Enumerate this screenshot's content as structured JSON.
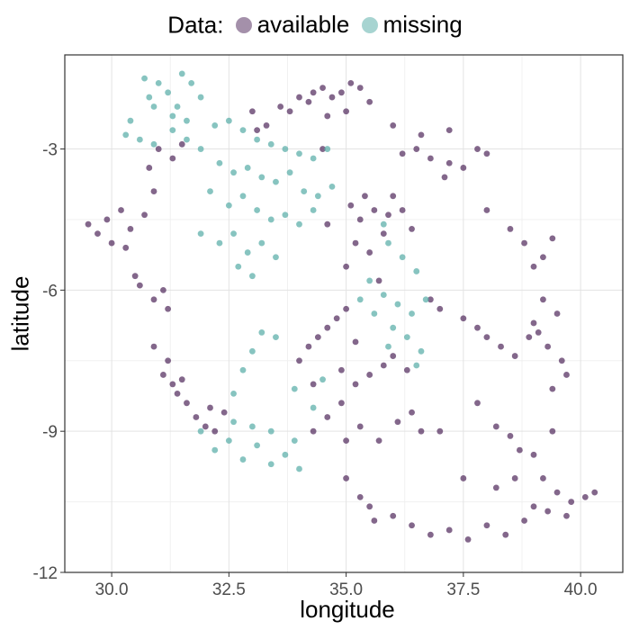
{
  "chart_data": {
    "type": "scatter",
    "title": "",
    "xlabel": "longitude",
    "ylabel": "latitude",
    "xlim": [
      29.0,
      40.9
    ],
    "ylim": [
      -12.0,
      -1.0
    ],
    "xticks": [
      30.0,
      32.5,
      35.0,
      37.5,
      40.0
    ],
    "xtick_labels": [
      "30.0",
      "32.5",
      "35.0",
      "37.5",
      "40.0"
    ],
    "yticks": [
      -3,
      -6,
      -9,
      -12
    ],
    "ytick_labels": [
      "-3",
      "-6",
      "-9",
      "-12"
    ],
    "grid": true,
    "legend": {
      "title": "Data:",
      "placement": "top"
    },
    "series": [
      {
        "name": "available",
        "color": "#5a3464",
        "points": [
          [
            29.5,
            -4.6
          ],
          [
            29.7,
            -4.8
          ],
          [
            29.9,
            -4.5
          ],
          [
            30.0,
            -5.0
          ],
          [
            30.2,
            -4.3
          ],
          [
            30.3,
            -5.1
          ],
          [
            30.4,
            -4.7
          ],
          [
            30.5,
            -5.7
          ],
          [
            30.6,
            -5.9
          ],
          [
            30.9,
            -6.2
          ],
          [
            31.2,
            -6.4
          ],
          [
            31.1,
            -6.0
          ],
          [
            30.8,
            -3.4
          ],
          [
            30.9,
            -3.9
          ],
          [
            30.7,
            -4.4
          ],
          [
            31.0,
            -3.0
          ],
          [
            31.3,
            -3.2
          ],
          [
            31.5,
            -2.9
          ],
          [
            31.2,
            -7.5
          ],
          [
            31.1,
            -7.8
          ],
          [
            31.3,
            -8.0
          ],
          [
            31.4,
            -8.2
          ],
          [
            31.6,
            -8.4
          ],
          [
            31.8,
            -8.7
          ],
          [
            32.0,
            -8.9
          ],
          [
            32.2,
            -9.0
          ],
          [
            32.4,
            -8.6
          ],
          [
            31.5,
            -7.9
          ],
          [
            32.1,
            -8.5
          ],
          [
            30.9,
            -7.2
          ],
          [
            33.0,
            -2.2
          ],
          [
            33.1,
            -2.6
          ],
          [
            33.3,
            -2.5
          ],
          [
            33.6,
            -2.1
          ],
          [
            33.8,
            -2.2
          ],
          [
            34.0,
            -1.9
          ],
          [
            34.3,
            -1.8
          ],
          [
            34.5,
            -1.7
          ],
          [
            34.7,
            -1.9
          ],
          [
            34.9,
            -1.8
          ],
          [
            35.1,
            -1.6
          ],
          [
            35.3,
            -1.7
          ],
          [
            35.5,
            -2.0
          ],
          [
            35.0,
            -2.2
          ],
          [
            34.6,
            -2.3
          ],
          [
            34.2,
            -2.0
          ],
          [
            34.5,
            -3.0
          ],
          [
            35.1,
            -4.2
          ],
          [
            35.3,
            -4.5
          ],
          [
            35.4,
            -4.0
          ],
          [
            35.6,
            -4.3
          ],
          [
            35.8,
            -4.8
          ],
          [
            35.2,
            -5.0
          ],
          [
            35.5,
            -5.2
          ],
          [
            35.9,
            -4.4
          ],
          [
            36.0,
            -4.0
          ],
          [
            36.2,
            -4.3
          ],
          [
            36.4,
            -4.7
          ],
          [
            34.6,
            -4.6
          ],
          [
            35.0,
            -5.5
          ],
          [
            35.7,
            -5.8
          ],
          [
            36.0,
            -2.5
          ],
          [
            36.2,
            -3.1
          ],
          [
            36.5,
            -3.0
          ],
          [
            36.8,
            -3.2
          ],
          [
            37.2,
            -3.3
          ],
          [
            37.5,
            -3.4
          ],
          [
            37.8,
            -3.0
          ],
          [
            38.0,
            -3.1
          ],
          [
            36.6,
            -2.7
          ],
          [
            37.1,
            -3.6
          ],
          [
            37.2,
            -2.6
          ],
          [
            38.0,
            -4.3
          ],
          [
            38.5,
            -4.7
          ],
          [
            38.8,
            -5.0
          ],
          [
            39.0,
            -5.5
          ],
          [
            39.2,
            -5.3
          ],
          [
            39.4,
            -4.9
          ],
          [
            39.2,
            -6.2
          ],
          [
            39.0,
            -6.7
          ],
          [
            36.8,
            -6.2
          ],
          [
            37.0,
            -6.4
          ],
          [
            37.5,
            -6.6
          ],
          [
            37.8,
            -6.8
          ],
          [
            38.0,
            -7.0
          ],
          [
            38.3,
            -7.2
          ],
          [
            38.6,
            -7.4
          ],
          [
            38.9,
            -7.0
          ],
          [
            39.1,
            -6.9
          ],
          [
            39.3,
            -7.2
          ],
          [
            39.5,
            -6.5
          ],
          [
            39.6,
            -7.5
          ],
          [
            39.7,
            -7.8
          ],
          [
            39.4,
            -8.1
          ],
          [
            34.0,
            -7.5
          ],
          [
            34.2,
            -7.2
          ],
          [
            34.4,
            -7.0
          ],
          [
            34.6,
            -6.8
          ],
          [
            34.8,
            -6.6
          ],
          [
            35.0,
            -6.4
          ],
          [
            35.2,
            -7.1
          ],
          [
            34.9,
            -7.7
          ],
          [
            34.3,
            -8.0
          ],
          [
            34.3,
            -9.0
          ],
          [
            34.6,
            -8.7
          ],
          [
            34.9,
            -8.4
          ],
          [
            35.2,
            -8.0
          ],
          [
            35.5,
            -7.8
          ],
          [
            35.8,
            -7.6
          ],
          [
            36.0,
            -7.4
          ],
          [
            36.3,
            -7.7
          ],
          [
            35.0,
            -9.2
          ],
          [
            35.3,
            -8.9
          ],
          [
            35.7,
            -9.2
          ],
          [
            36.1,
            -8.8
          ],
          [
            36.4,
            -8.6
          ],
          [
            36.6,
            -9.0
          ],
          [
            37.0,
            -9.0
          ],
          [
            35.0,
            -10.0
          ],
          [
            35.3,
            -10.4
          ],
          [
            35.5,
            -10.6
          ],
          [
            35.6,
            -10.9
          ],
          [
            36.0,
            -10.8
          ],
          [
            36.4,
            -11.0
          ],
          [
            36.8,
            -11.2
          ],
          [
            37.2,
            -11.1
          ],
          [
            37.6,
            -11.3
          ],
          [
            38.0,
            -11.0
          ],
          [
            38.4,
            -11.2
          ],
          [
            38.8,
            -10.9
          ],
          [
            37.8,
            -8.4
          ],
          [
            38.2,
            -8.9
          ],
          [
            38.5,
            -9.1
          ],
          [
            38.7,
            -9.4
          ],
          [
            38.6,
            -10.0
          ],
          [
            38.2,
            -10.2
          ],
          [
            37.5,
            -10.0
          ],
          [
            39.0,
            -9.5
          ],
          [
            39.2,
            -10.0
          ],
          [
            39.5,
            -10.3
          ],
          [
            39.8,
            -10.5
          ],
          [
            40.1,
            -10.4
          ],
          [
            39.3,
            -10.7
          ],
          [
            39.7,
            -10.8
          ],
          [
            39.0,
            -10.6
          ],
          [
            40.3,
            -10.3
          ],
          [
            39.4,
            -9.0
          ]
        ]
      },
      {
        "name": "missing",
        "color": "#5fb0ab",
        "points": [
          [
            30.7,
            -1.5
          ],
          [
            30.8,
            -1.9
          ],
          [
            30.9,
            -2.1
          ],
          [
            31.0,
            -1.6
          ],
          [
            31.2,
            -1.8
          ],
          [
            31.4,
            -2.1
          ],
          [
            31.5,
            -1.4
          ],
          [
            31.7,
            -1.6
          ],
          [
            31.9,
            -1.9
          ],
          [
            31.6,
            -2.4
          ],
          [
            31.3,
            -2.3
          ],
          [
            30.4,
            -2.4
          ],
          [
            30.6,
            -2.8
          ],
          [
            30.9,
            -2.9
          ],
          [
            30.3,
            -2.7
          ],
          [
            31.3,
            -2.6
          ],
          [
            31.6,
            -2.8
          ],
          [
            31.9,
            -3.0
          ],
          [
            32.2,
            -2.5
          ],
          [
            32.5,
            -2.4
          ],
          [
            32.8,
            -2.6
          ],
          [
            33.1,
            -2.8
          ],
          [
            33.4,
            -2.9
          ],
          [
            33.7,
            -3.0
          ],
          [
            34.0,
            -3.1
          ],
          [
            34.3,
            -3.2
          ],
          [
            34.6,
            -3.0
          ],
          [
            32.3,
            -3.3
          ],
          [
            32.6,
            -3.5
          ],
          [
            32.9,
            -3.4
          ],
          [
            33.2,
            -3.6
          ],
          [
            33.5,
            -3.7
          ],
          [
            33.8,
            -3.5
          ],
          [
            34.1,
            -3.9
          ],
          [
            34.4,
            -4.0
          ],
          [
            34.7,
            -3.8
          ],
          [
            32.1,
            -3.9
          ],
          [
            32.5,
            -4.2
          ],
          [
            32.8,
            -4.0
          ],
          [
            33.1,
            -4.3
          ],
          [
            33.4,
            -4.5
          ],
          [
            33.7,
            -4.4
          ],
          [
            34.0,
            -4.6
          ],
          [
            34.3,
            -4.3
          ],
          [
            31.9,
            -4.8
          ],
          [
            32.3,
            -5.0
          ],
          [
            32.6,
            -4.8
          ],
          [
            32.9,
            -5.2
          ],
          [
            33.2,
            -5.0
          ],
          [
            33.5,
            -5.3
          ],
          [
            33.0,
            -5.7
          ],
          [
            32.7,
            -5.5
          ],
          [
            35.8,
            -4.6
          ],
          [
            35.9,
            -5.0
          ],
          [
            36.2,
            -5.3
          ],
          [
            36.5,
            -5.6
          ],
          [
            35.5,
            -5.8
          ],
          [
            35.8,
            -6.1
          ],
          [
            36.1,
            -6.3
          ],
          [
            36.4,
            -6.5
          ],
          [
            36.7,
            -6.2
          ],
          [
            35.3,
            -6.2
          ],
          [
            35.6,
            -6.5
          ],
          [
            36.0,
            -6.8
          ],
          [
            36.3,
            -7.0
          ],
          [
            36.6,
            -7.3
          ],
          [
            35.9,
            -7.2
          ],
          [
            36.5,
            -7.6
          ],
          [
            33.2,
            -6.9
          ],
          [
            33.0,
            -7.3
          ],
          [
            32.8,
            -7.7
          ],
          [
            32.6,
            -8.2
          ],
          [
            33.5,
            -7.0
          ],
          [
            33.9,
            -8.1
          ],
          [
            34.3,
            -8.5
          ],
          [
            34.5,
            -7.9
          ],
          [
            31.9,
            -9.0
          ],
          [
            32.2,
            -9.4
          ],
          [
            32.5,
            -9.2
          ],
          [
            32.8,
            -9.6
          ],
          [
            33.1,
            -9.3
          ],
          [
            33.4,
            -9.7
          ],
          [
            33.7,
            -9.5
          ],
          [
            34.0,
            -9.8
          ],
          [
            33.0,
            -8.9
          ],
          [
            32.6,
            -8.8
          ],
          [
            33.4,
            -9.0
          ],
          [
            33.9,
            -9.2
          ]
        ]
      }
    ]
  }
}
